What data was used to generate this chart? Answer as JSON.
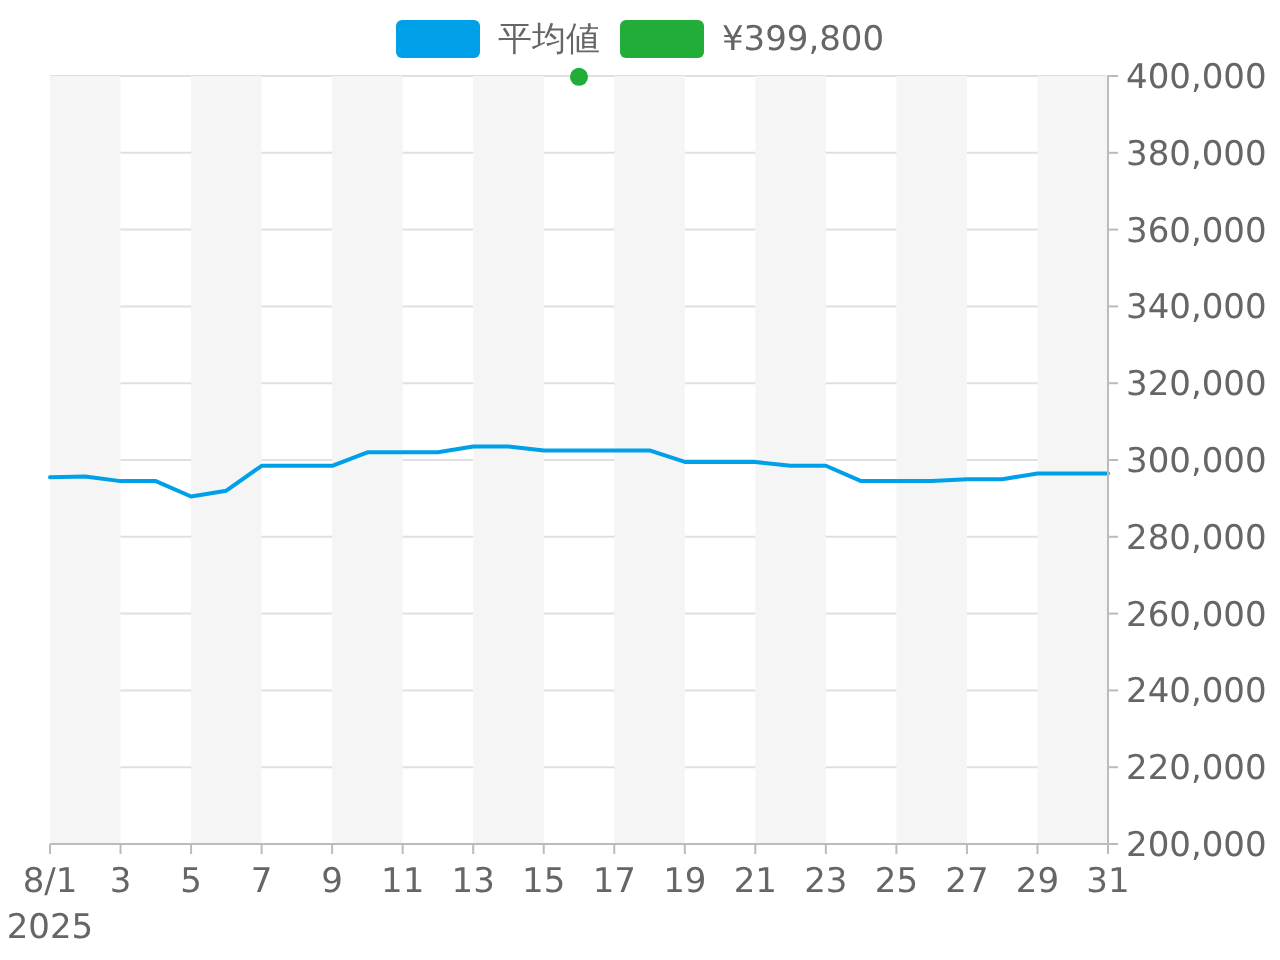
{
  "chart_data": {
    "type": "line",
    "x": [
      "2025-08-01",
      "2025-08-02",
      "2025-08-03",
      "2025-08-04",
      "2025-08-05",
      "2025-08-06",
      "2025-08-07",
      "2025-08-08",
      "2025-08-09",
      "2025-08-10",
      "2025-08-11",
      "2025-08-12",
      "2025-08-13",
      "2025-08-14",
      "2025-08-15",
      "2025-08-16",
      "2025-08-17",
      "2025-08-18",
      "2025-08-19",
      "2025-08-20",
      "2025-08-21",
      "2025-08-22",
      "2025-08-23",
      "2025-08-24",
      "2025-08-25",
      "2025-08-26",
      "2025-08-27",
      "2025-08-28",
      "2025-08-29",
      "2025-08-30",
      "2025-08-31"
    ],
    "series": [
      {
        "name": "平均値",
        "color": "#00a0e9",
        "values": [
          295500,
          295700,
          294500,
          294500,
          290500,
          292000,
          298500,
          298500,
          298500,
          302000,
          302000,
          302000,
          303500,
          303500,
          302500,
          302500,
          302500,
          302500,
          299500,
          299500,
          299500,
          298500,
          298500,
          294500,
          294500,
          294500,
          295000,
          295000,
          296500,
          296500,
          296500
        ]
      },
      {
        "name": "¥399,800",
        "type": "scatter",
        "color": "#22ac38",
        "marker": "circle",
        "x": [
          "2025-08-16"
        ],
        "values": [
          399800
        ]
      }
    ],
    "xlim": [
      "2025-08-01",
      "2025-08-31"
    ],
    "xticks": [
      {
        "value": "2025-08-01",
        "label": "8/1\n2025"
      },
      {
        "value": "2025-08-03",
        "label": "3"
      },
      {
        "value": "2025-08-05",
        "label": "5"
      },
      {
        "value": "2025-08-07",
        "label": "7"
      },
      {
        "value": "2025-08-09",
        "label": "9"
      },
      {
        "value": "2025-08-11",
        "label": "11"
      },
      {
        "value": "2025-08-13",
        "label": "13"
      },
      {
        "value": "2025-08-15",
        "label": "15"
      },
      {
        "value": "2025-08-17",
        "label": "17"
      },
      {
        "value": "2025-08-19",
        "label": "19"
      },
      {
        "value": "2025-08-21",
        "label": "21"
      },
      {
        "value": "2025-08-23",
        "label": "23"
      },
      {
        "value": "2025-08-25",
        "label": "25"
      },
      {
        "value": "2025-08-27",
        "label": "27"
      },
      {
        "value": "2025-08-29",
        "label": "29"
      },
      {
        "value": "2025-08-31",
        "label": "31"
      }
    ],
    "ylim": [
      200000,
      400000
    ],
    "yticks": [
      {
        "value": 200000,
        "label": "200,000"
      },
      {
        "value": 220000,
        "label": "220,000"
      },
      {
        "value": 240000,
        "label": "240,000"
      },
      {
        "value": 260000,
        "label": "260,000"
      },
      {
        "value": 280000,
        "label": "280,000"
      },
      {
        "value": 300000,
        "label": "300,000"
      },
      {
        "value": 320000,
        "label": "320,000"
      },
      {
        "value": 340000,
        "label": "340,000"
      },
      {
        "value": 360000,
        "label": "360,000"
      },
      {
        "value": 380000,
        "label": "380,000"
      },
      {
        "value": 400000,
        "label": "400,000"
      }
    ],
    "bands": [
      {
        "axis": "x",
        "from": "2025-08-01",
        "to": "2025-08-03",
        "color": "#f5f5f5"
      },
      {
        "axis": "x",
        "from": "2025-08-05",
        "to": "2025-08-07",
        "color": "#f5f5f5"
      },
      {
        "axis": "x",
        "from": "2025-08-09",
        "to": "2025-08-11",
        "color": "#f5f5f5"
      },
      {
        "axis": "x",
        "from": "2025-08-13",
        "to": "2025-08-15",
        "color": "#f5f5f5"
      },
      {
        "axis": "x",
        "from": "2025-08-17",
        "to": "2025-08-19",
        "color": "#f5f5f5"
      },
      {
        "axis": "x",
        "from": "2025-08-21",
        "to": "2025-08-23",
        "color": "#f5f5f5"
      },
      {
        "axis": "x",
        "from": "2025-08-25",
        "to": "2025-08-27",
        "color": "#f5f5f5"
      },
      {
        "axis": "x",
        "from": "2025-08-29",
        "to": "2025-08-31",
        "color": "#f5f5f5"
      }
    ],
    "grid": "y",
    "legend": "top"
  }
}
